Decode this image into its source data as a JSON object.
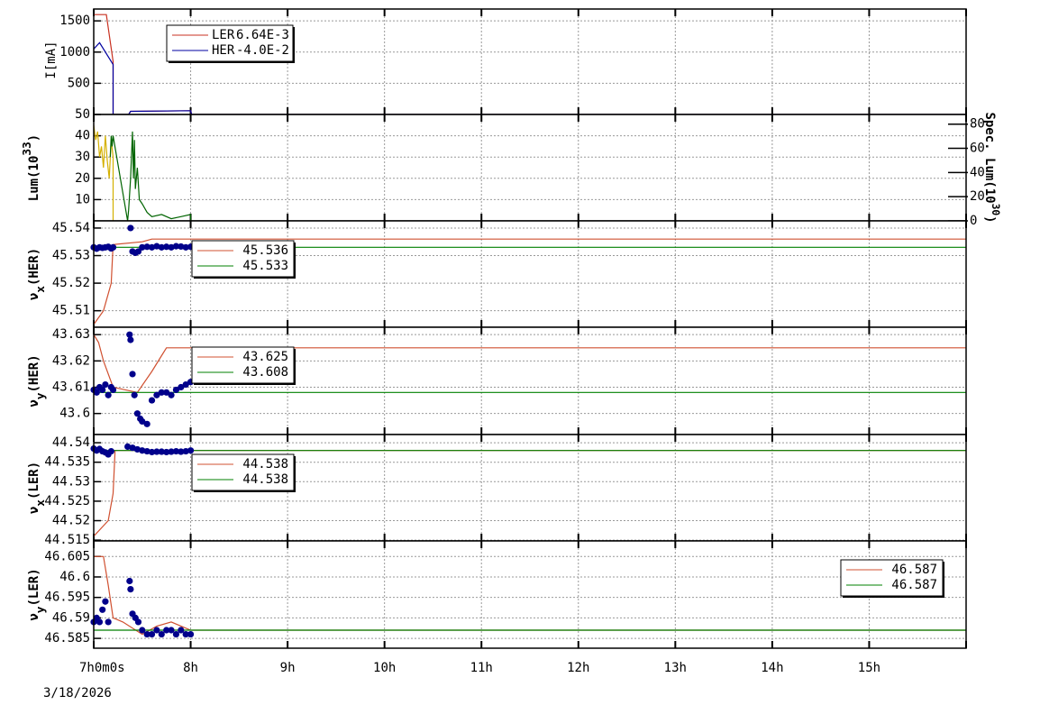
{
  "chart_data": [
    {
      "type": "line",
      "ylabel": [
        {
          "text": "I[mA]"
        }
      ],
      "ylim": [
        0,
        1690
      ],
      "yticks": [
        500,
        1000,
        1500
      ],
      "xlim": [
        7,
        16
      ],
      "xticks": [
        7,
        8,
        9,
        10,
        11,
        12,
        13,
        14,
        15,
        16
      ],
      "grid": true,
      "legend": "upper-left",
      "series": [
        {
          "name": "LER",
          "legend_value": "6.64E-3",
          "color": "#c83020",
          "mode": "lines",
          "x": [
            7.0,
            7.13,
            7.2,
            7.2,
            7.36,
            7.38,
            8.0,
            8.01,
            16
          ],
          "values": [
            1600,
            1600,
            850,
            0,
            0,
            50,
            60,
            0,
            0
          ]
        },
        {
          "name": "HER",
          "legend_value": "-4.0E-2",
          "color": "#0000a0",
          "mode": "lines",
          "x": [
            7.0,
            7.06,
            7.2,
            7.2,
            7.36,
            7.38,
            8.0,
            8.01,
            16
          ],
          "values": [
            1050,
            1150,
            800,
            0,
            0,
            50,
            60,
            0,
            0
          ]
        }
      ]
    },
    {
      "type": "line",
      "ylabel": [
        {
          "text": "Lum(10"
        },
        {
          "text": "33",
          "shift": "sup"
        },
        {
          "text": ")"
        }
      ],
      "ylim": [
        0,
        50
      ],
      "yticks": [
        10,
        20,
        30,
        40,
        50
      ],
      "y2label": [
        {
          "text": "Spec. Lum(10"
        },
        {
          "text": "30",
          "shift": "sup"
        },
        {
          "text": ")"
        }
      ],
      "y2lim": [
        0,
        88
      ],
      "y2ticks": [
        0,
        20,
        40,
        60,
        80
      ],
      "xlim": [
        7,
        16
      ],
      "xticks": [
        7,
        8,
        9,
        10,
        11,
        12,
        13,
        14,
        15,
        16
      ],
      "grid": true,
      "series": [
        {
          "color": "#d4b000",
          "mode": "lines",
          "x": [
            7.0,
            7.02,
            7.04,
            7.06,
            7.08,
            7.1,
            7.12,
            7.14,
            7.16,
            7.18,
            7.2,
            7.2
          ],
          "values": [
            45,
            38,
            42,
            30,
            35,
            25,
            40,
            28,
            20,
            38,
            30,
            0
          ]
        },
        {
          "color": "#006400",
          "mode": "lines",
          "x": [
            7.17,
            7.18,
            7.19,
            7.2,
            7.35,
            7.36,
            7.38,
            7.4,
            7.41,
            7.42,
            7.43,
            7.45,
            7.47,
            7.5,
            7.55,
            7.6,
            7.7,
            7.8,
            7.9,
            8.0,
            8.0
          ],
          "values": [
            30,
            40,
            35,
            40,
            0,
            5,
            20,
            42,
            20,
            38,
            15,
            25,
            10,
            8,
            4,
            2,
            3,
            1,
            2,
            3,
            0
          ]
        }
      ]
    },
    {
      "type": "line",
      "ylabel": [
        {
          "text": "ν"
        },
        {
          "text": "x",
          "shift": "sub"
        },
        {
          "text": "(HER)"
        }
      ],
      "ylim": [
        45.504,
        45.5426
      ],
      "yticks": [
        45.51,
        45.52,
        45.53,
        45.54
      ],
      "xlim": [
        7,
        16
      ],
      "xticks": [
        7,
        8,
        9,
        10,
        11,
        12,
        13,
        14,
        15,
        16
      ],
      "grid": true,
      "legend": "upper-left",
      "series": [
        {
          "name": "45.536",
          "color": "#d05030",
          "mode": "lines",
          "x": [
            7.0,
            7.1,
            7.18,
            7.2,
            7.5,
            7.6,
            16
          ],
          "values": [
            45.505,
            45.51,
            45.52,
            45.534,
            45.535,
            45.536,
            45.536
          ]
        },
        {
          "name": "45.533",
          "color": "#008000",
          "mode": "lines",
          "x": [
            7.0,
            16
          ],
          "values": [
            45.533,
            45.533
          ]
        },
        {
          "color": "#00008b",
          "mode": "markers",
          "x": [
            7.0,
            7.03,
            7.06,
            7.09,
            7.12,
            7.15,
            7.18,
            7.2,
            7.38,
            7.4,
            7.43,
            7.46,
            7.5,
            7.55,
            7.6,
            7.65,
            7.7,
            7.75,
            7.8,
            7.85,
            7.9,
            7.95,
            8.0
          ],
          "values": [
            45.533,
            45.5325,
            45.533,
            45.5328,
            45.533,
            45.5332,
            45.5326,
            45.533,
            45.54,
            45.5315,
            45.531,
            45.5315,
            45.533,
            45.5332,
            45.533,
            45.5334,
            45.533,
            45.5332,
            45.533,
            45.5334,
            45.5333,
            45.533,
            45.5332
          ]
        }
      ]
    },
    {
      "type": "line",
      "ylabel": [
        {
          "text": "ν"
        },
        {
          "text": "y",
          "shift": "sub"
        },
        {
          "text": "(HER)"
        }
      ],
      "ylim": [
        43.592,
        43.6328
      ],
      "yticks": [
        43.6,
        43.61,
        43.62,
        43.63
      ],
      "xlim": [
        7,
        16
      ],
      "xticks": [
        7,
        8,
        9,
        10,
        11,
        12,
        13,
        14,
        15,
        16
      ],
      "grid": true,
      "legend": "upper-left",
      "series": [
        {
          "name": "43.625",
          "color": "#d05030",
          "mode": "lines",
          "x": [
            7.0,
            7.05,
            7.1,
            7.2,
            7.45,
            7.6,
            7.7,
            7.75,
            16
          ],
          "values": [
            43.63,
            43.627,
            43.62,
            43.61,
            43.608,
            43.616,
            43.622,
            43.625,
            43.625
          ]
        },
        {
          "name": "43.608",
          "color": "#008000",
          "mode": "lines",
          "x": [
            7.0,
            16
          ],
          "values": [
            43.608,
            43.608
          ]
        },
        {
          "color": "#00008b",
          "mode": "markers",
          "x": [
            7.0,
            7.03,
            7.06,
            7.09,
            7.12,
            7.15,
            7.18,
            7.2,
            7.37,
            7.38,
            7.4,
            7.42,
            7.45,
            7.48,
            7.5,
            7.55,
            7.6,
            7.65,
            7.7,
            7.75,
            7.8,
            7.85,
            7.9,
            7.95,
            8.0
          ],
          "values": [
            43.609,
            43.608,
            43.61,
            43.609,
            43.611,
            43.607,
            43.61,
            43.609,
            43.63,
            43.628,
            43.615,
            43.607,
            43.6,
            43.598,
            43.597,
            43.596,
            43.605,
            43.607,
            43.608,
            43.608,
            43.607,
            43.609,
            43.61,
            43.611,
            43.612
          ]
        }
      ]
    },
    {
      "type": "line",
      "ylabel": [
        {
          "text": "ν"
        },
        {
          "text": "x",
          "shift": "sub"
        },
        {
          "text": "(LER)"
        }
      ],
      "ylim": [
        44.5148,
        44.5421
      ],
      "yticks": [
        44.515,
        44.52,
        44.525,
        44.53,
        44.535,
        44.54
      ],
      "xlim": [
        7,
        16
      ],
      "xticks": [
        7,
        8,
        9,
        10,
        11,
        12,
        13,
        14,
        15,
        16
      ],
      "grid": true,
      "legend": "upper-left",
      "series": [
        {
          "name": "44.538",
          "color": "#d05030",
          "mode": "lines",
          "x": [
            7.0,
            7.15,
            7.2,
            7.22,
            16
          ],
          "values": [
            44.516,
            44.52,
            44.527,
            44.538,
            44.538
          ]
        },
        {
          "name": "44.538",
          "color": "#008000",
          "mode": "lines",
          "x": [
            7.0,
            16
          ],
          "values": [
            44.538,
            44.538
          ]
        },
        {
          "color": "#00008b",
          "mode": "markers",
          "x": [
            7.0,
            7.03,
            7.06,
            7.09,
            7.12,
            7.15,
            7.18,
            7.35,
            7.4,
            7.45,
            7.5,
            7.55,
            7.6,
            7.65,
            7.7,
            7.75,
            7.8,
            7.85,
            7.9,
            7.95,
            8.0
          ],
          "values": [
            44.5385,
            44.538,
            44.5384,
            44.5378,
            44.5375,
            44.537,
            44.5378,
            44.539,
            44.5387,
            44.5383,
            44.538,
            44.5378,
            44.5376,
            44.5377,
            44.5377,
            44.5376,
            44.5377,
            44.5378,
            44.5377,
            44.5378,
            44.538
          ]
        }
      ]
    },
    {
      "type": "line",
      "ylabel": [
        {
          "text": "ν"
        },
        {
          "text": "y",
          "shift": "sub"
        },
        {
          "text": "(LER)"
        }
      ],
      "ylim": [
        46.5826,
        46.6088
      ],
      "yticks": [
        46.585,
        46.59,
        46.595,
        46.6,
        46.605
      ],
      "xlim": [
        7,
        16
      ],
      "xticks": [
        {
          "value": 7,
          "label": "7h0m0s"
        },
        {
          "value": 8,
          "label": "8h"
        },
        {
          "value": 9,
          "label": "9h"
        },
        {
          "value": 10,
          "label": "10h"
        },
        {
          "value": 11,
          "label": "11h"
        },
        {
          "value": 12,
          "label": "12h"
        },
        {
          "value": 13,
          "label": "13h"
        },
        {
          "value": 14,
          "label": "14h"
        },
        {
          "value": 15,
          "label": "15h"
        },
        16
      ],
      "x_date": "3/18/2026",
      "grid": true,
      "legend": "upper-right",
      "series": [
        {
          "name": "46.587",
          "color": "#d05030",
          "mode": "lines",
          "x": [
            7.0,
            7.1,
            7.15,
            7.2,
            7.3,
            7.5,
            7.65,
            7.8,
            8.0,
            16
          ],
          "values": [
            46.605,
            46.605,
            46.598,
            46.59,
            46.589,
            46.586,
            46.588,
            46.589,
            46.587,
            46.587
          ]
        },
        {
          "name": "46.587",
          "color": "#008000",
          "mode": "lines",
          "x": [
            7.0,
            16
          ],
          "values": [
            46.587,
            46.587
          ]
        },
        {
          "color": "#00008b",
          "mode": "markers",
          "x": [
            7.0,
            7.03,
            7.06,
            7.09,
            7.12,
            7.15,
            7.37,
            7.38,
            7.4,
            7.43,
            7.46,
            7.5,
            7.55,
            7.6,
            7.65,
            7.7,
            7.75,
            7.8,
            7.85,
            7.9,
            7.95,
            8.0
          ],
          "values": [
            46.589,
            46.59,
            46.589,
            46.592,
            46.594,
            46.589,
            46.599,
            46.597,
            46.591,
            46.59,
            46.589,
            46.587,
            46.586,
            46.586,
            46.587,
            46.586,
            46.587,
            46.587,
            46.586,
            46.587,
            46.586,
            46.586
          ]
        }
      ]
    }
  ]
}
